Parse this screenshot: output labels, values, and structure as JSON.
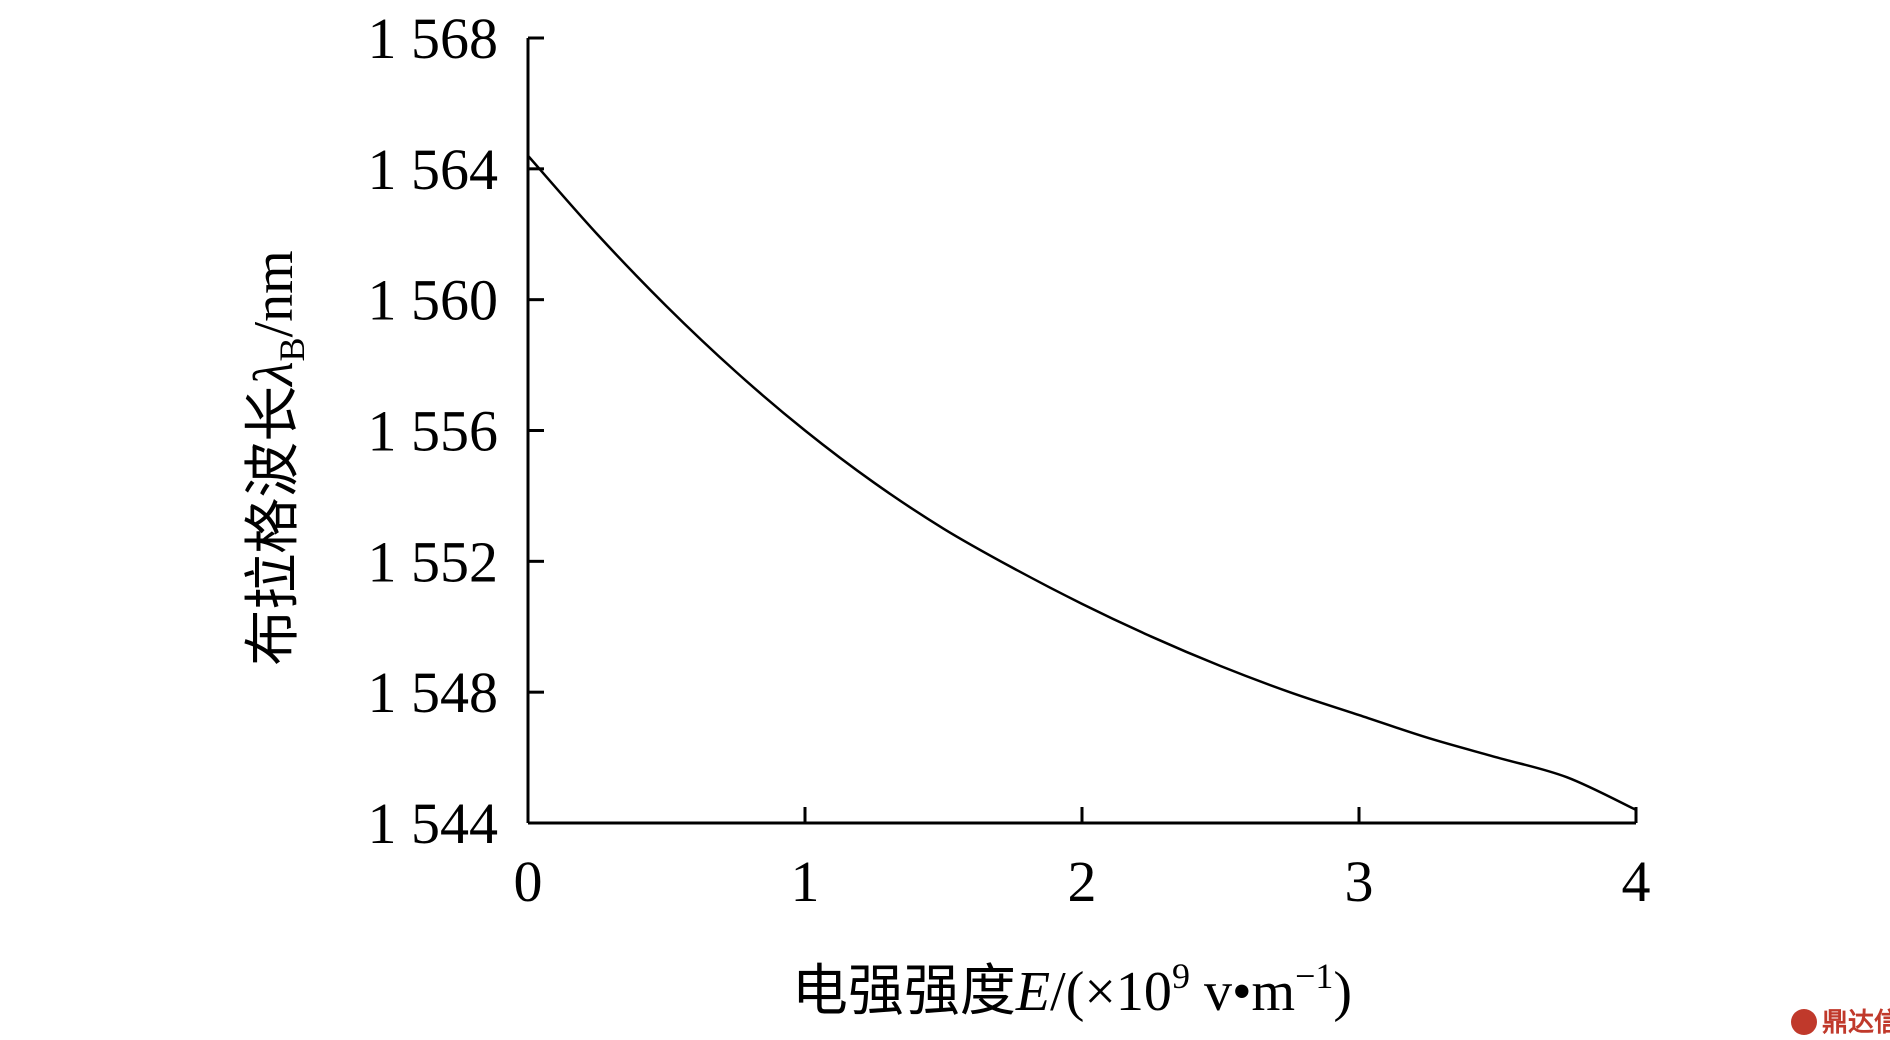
{
  "chart_data": {
    "type": "line",
    "title": "",
    "xlabel": {
      "prefix": "电强强度",
      "variable": "E",
      "unit_open": "/(×10",
      "unit_exp": "9",
      "unit_mid": " v•m",
      "unit_exp2": "−1",
      "unit_close": ")"
    },
    "ylabel": {
      "prefix": "布拉格波长",
      "variable": "λ",
      "subscript": "B",
      "unit": "/nm"
    },
    "xlim": [
      0,
      4
    ],
    "ylim": [
      1544,
      1568
    ],
    "xticks": [
      0,
      1,
      2,
      3,
      4
    ],
    "xtick_labels": [
      "0",
      "1",
      "2",
      "3",
      "4"
    ],
    "yticks": [
      1544,
      1548,
      1552,
      1556,
      1560,
      1564,
      1568
    ],
    "ytick_labels": [
      "1 544",
      "1 548",
      "1 552",
      "1 556",
      "1 560",
      "1 564",
      "1 568"
    ],
    "grid": false,
    "legend": "none",
    "series": [
      {
        "color": "#000000",
        "x": [
          0,
          0.25,
          0.5,
          0.75,
          1.0,
          1.25,
          1.5,
          1.75,
          2.0,
          2.25,
          2.5,
          2.75,
          3.0,
          3.25,
          3.5,
          3.75,
          4.0
        ],
        "y": [
          1564.4,
          1562.0,
          1559.8,
          1557.8,
          1556.0,
          1554.4,
          1553.0,
          1551.8,
          1550.7,
          1549.7,
          1548.8,
          1548.0,
          1547.3,
          1546.6,
          1546.0,
          1545.4,
          1544.4
        ]
      }
    ]
  },
  "watermark": {
    "icon": "seal-icon",
    "text": "鼎达信",
    "color": "#c0392b"
  }
}
